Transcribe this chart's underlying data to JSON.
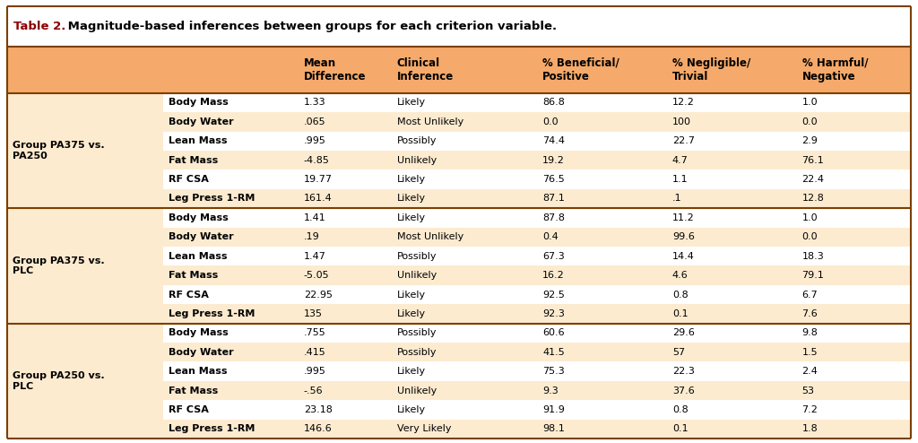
{
  "title_bold": "Table 2.",
  "title_rest": " Magnitude-based inferences between groups for each criterion variable.",
  "header_labels": [
    "",
    "",
    "Mean\nDifference",
    "Clinical\nInference",
    "% Beneficial/\nPositive",
    "% Negligible/\nTrivial",
    "% Harmful/\nNegative"
  ],
  "groups": [
    {
      "group_label": "Group PA375 vs.\nPA250",
      "rows": [
        [
          "Body Mass",
          "1.33",
          "Likely",
          "86.8",
          "12.2",
          "1.0"
        ],
        [
          "Body Water",
          ".065",
          "Most Unlikely",
          "0.0",
          "100",
          "0.0"
        ],
        [
          "Lean Mass",
          ".995",
          "Possibly",
          "74.4",
          "22.7",
          "2.9"
        ],
        [
          "Fat Mass",
          "-4.85",
          "Unlikely",
          "19.2",
          "4.7",
          "76.1"
        ],
        [
          "RF CSA",
          "19.77",
          "Likely",
          "76.5",
          "1.1",
          "22.4"
        ],
        [
          "Leg Press 1-RM",
          "161.4",
          "Likely",
          "87.1",
          ".1",
          "12.8"
        ]
      ]
    },
    {
      "group_label": "Group PA375 vs.\nPLC",
      "rows": [
        [
          "Body Mass",
          "1.41",
          "Likely",
          "87.8",
          "11.2",
          "1.0"
        ],
        [
          "Body Water",
          ".19",
          "Most Unlikely",
          "0.4",
          "99.6",
          "0.0"
        ],
        [
          "Lean Mass",
          "1.47",
          "Possibly",
          "67.3",
          "14.4",
          "18.3"
        ],
        [
          "Fat Mass",
          "-5.05",
          "Unlikely",
          "16.2",
          "4.6",
          "79.1"
        ],
        [
          "RF CSA",
          "22.95",
          "Likely",
          "92.5",
          "0.8",
          "6.7"
        ],
        [
          "Leg Press 1-RM",
          "135",
          "Likely",
          "92.3",
          "0.1",
          "7.6"
        ]
      ]
    },
    {
      "group_label": "Group PA250 vs.\nPLC",
      "rows": [
        [
          "Body Mass",
          ".755",
          "Possibly",
          "60.6",
          "29.6",
          "9.8"
        ],
        [
          "Body Water",
          ".415",
          "Possibly",
          "41.5",
          "57",
          "1.5"
        ],
        [
          "Lean Mass",
          ".995",
          "Likely",
          "75.3",
          "22.3",
          "2.4"
        ],
        [
          "Fat Mass",
          "-.56",
          "Unlikely",
          "9.3",
          "37.6",
          "53"
        ],
        [
          "RF CSA",
          "23.18",
          "Likely",
          "91.9",
          "0.8",
          "7.2"
        ],
        [
          "Leg Press 1-RM",
          "146.6",
          "Very Likely",
          "98.1",
          "0.1",
          "1.8"
        ]
      ]
    }
  ],
  "col_weights": [
    0.15,
    0.13,
    0.09,
    0.14,
    0.125,
    0.125,
    0.11
  ],
  "header_bg": "#F5A96A",
  "row_bg_light": "#FDEBD0",
  "row_bg_white": "#FFFFFF",
  "group_bg_light": "#FDEBD0",
  "title_color": "#8B0000",
  "text_color": "#000000",
  "border_color": "#7B3F00",
  "title_bg": "#FFFFFF",
  "font_size_title": 9.5,
  "font_size_header": 8.5,
  "font_size_data": 8.0
}
